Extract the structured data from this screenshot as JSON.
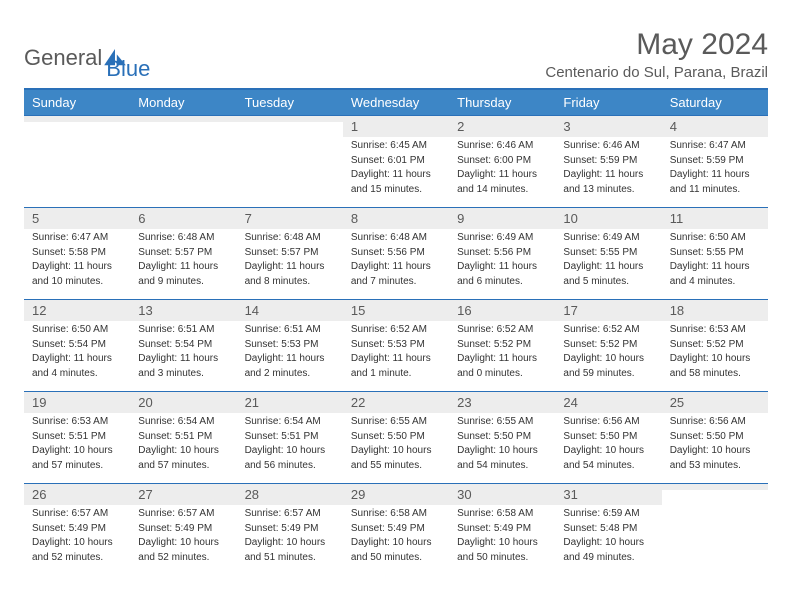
{
  "logo": {
    "part1": "General",
    "part2": "Blue"
  },
  "title": "May 2024",
  "location": "Centenario do Sul, Parana, Brazil",
  "colors": {
    "header_bg": "#3d86c6",
    "header_border": "#2a70b8",
    "daynum_bg": "#ededed",
    "text": "#333333",
    "muted": "#5a5a5a",
    "brand_blue": "#2a70b8"
  },
  "daysOfWeek": [
    "Sunday",
    "Monday",
    "Tuesday",
    "Wednesday",
    "Thursday",
    "Friday",
    "Saturday"
  ],
  "weeks": [
    [
      {
        "empty": true
      },
      {
        "empty": true
      },
      {
        "empty": true
      },
      {
        "day": "1",
        "sunrise": "6:45 AM",
        "sunset": "6:01 PM",
        "daylight": "11 hours and 15 minutes."
      },
      {
        "day": "2",
        "sunrise": "6:46 AM",
        "sunset": "6:00 PM",
        "daylight": "11 hours and 14 minutes."
      },
      {
        "day": "3",
        "sunrise": "6:46 AM",
        "sunset": "5:59 PM",
        "daylight": "11 hours and 13 minutes."
      },
      {
        "day": "4",
        "sunrise": "6:47 AM",
        "sunset": "5:59 PM",
        "daylight": "11 hours and 11 minutes."
      }
    ],
    [
      {
        "day": "5",
        "sunrise": "6:47 AM",
        "sunset": "5:58 PM",
        "daylight": "11 hours and 10 minutes."
      },
      {
        "day": "6",
        "sunrise": "6:48 AM",
        "sunset": "5:57 PM",
        "daylight": "11 hours and 9 minutes."
      },
      {
        "day": "7",
        "sunrise": "6:48 AM",
        "sunset": "5:57 PM",
        "daylight": "11 hours and 8 minutes."
      },
      {
        "day": "8",
        "sunrise": "6:48 AM",
        "sunset": "5:56 PM",
        "daylight": "11 hours and 7 minutes."
      },
      {
        "day": "9",
        "sunrise": "6:49 AM",
        "sunset": "5:56 PM",
        "daylight": "11 hours and 6 minutes."
      },
      {
        "day": "10",
        "sunrise": "6:49 AM",
        "sunset": "5:55 PM",
        "daylight": "11 hours and 5 minutes."
      },
      {
        "day": "11",
        "sunrise": "6:50 AM",
        "sunset": "5:55 PM",
        "daylight": "11 hours and 4 minutes."
      }
    ],
    [
      {
        "day": "12",
        "sunrise": "6:50 AM",
        "sunset": "5:54 PM",
        "daylight": "11 hours and 4 minutes."
      },
      {
        "day": "13",
        "sunrise": "6:51 AM",
        "sunset": "5:54 PM",
        "daylight": "11 hours and 3 minutes."
      },
      {
        "day": "14",
        "sunrise": "6:51 AM",
        "sunset": "5:53 PM",
        "daylight": "11 hours and 2 minutes."
      },
      {
        "day": "15",
        "sunrise": "6:52 AM",
        "sunset": "5:53 PM",
        "daylight": "11 hours and 1 minute."
      },
      {
        "day": "16",
        "sunrise": "6:52 AM",
        "sunset": "5:52 PM",
        "daylight": "11 hours and 0 minutes."
      },
      {
        "day": "17",
        "sunrise": "6:52 AM",
        "sunset": "5:52 PM",
        "daylight": "10 hours and 59 minutes."
      },
      {
        "day": "18",
        "sunrise": "6:53 AM",
        "sunset": "5:52 PM",
        "daylight": "10 hours and 58 minutes."
      }
    ],
    [
      {
        "day": "19",
        "sunrise": "6:53 AM",
        "sunset": "5:51 PM",
        "daylight": "10 hours and 57 minutes."
      },
      {
        "day": "20",
        "sunrise": "6:54 AM",
        "sunset": "5:51 PM",
        "daylight": "10 hours and 57 minutes."
      },
      {
        "day": "21",
        "sunrise": "6:54 AM",
        "sunset": "5:51 PM",
        "daylight": "10 hours and 56 minutes."
      },
      {
        "day": "22",
        "sunrise": "6:55 AM",
        "sunset": "5:50 PM",
        "daylight": "10 hours and 55 minutes."
      },
      {
        "day": "23",
        "sunrise": "6:55 AM",
        "sunset": "5:50 PM",
        "daylight": "10 hours and 54 minutes."
      },
      {
        "day": "24",
        "sunrise": "6:56 AM",
        "sunset": "5:50 PM",
        "daylight": "10 hours and 54 minutes."
      },
      {
        "day": "25",
        "sunrise": "6:56 AM",
        "sunset": "5:50 PM",
        "daylight": "10 hours and 53 minutes."
      }
    ],
    [
      {
        "day": "26",
        "sunrise": "6:57 AM",
        "sunset": "5:49 PM",
        "daylight": "10 hours and 52 minutes."
      },
      {
        "day": "27",
        "sunrise": "6:57 AM",
        "sunset": "5:49 PM",
        "daylight": "10 hours and 52 minutes."
      },
      {
        "day": "28",
        "sunrise": "6:57 AM",
        "sunset": "5:49 PM",
        "daylight": "10 hours and 51 minutes."
      },
      {
        "day": "29",
        "sunrise": "6:58 AM",
        "sunset": "5:49 PM",
        "daylight": "10 hours and 50 minutes."
      },
      {
        "day": "30",
        "sunrise": "6:58 AM",
        "sunset": "5:49 PM",
        "daylight": "10 hours and 50 minutes."
      },
      {
        "day": "31",
        "sunrise": "6:59 AM",
        "sunset": "5:48 PM",
        "daylight": "10 hours and 49 minutes."
      },
      {
        "empty": true
      }
    ]
  ],
  "labels": {
    "sunrise": "Sunrise:",
    "sunset": "Sunset:",
    "daylight": "Daylight:"
  }
}
